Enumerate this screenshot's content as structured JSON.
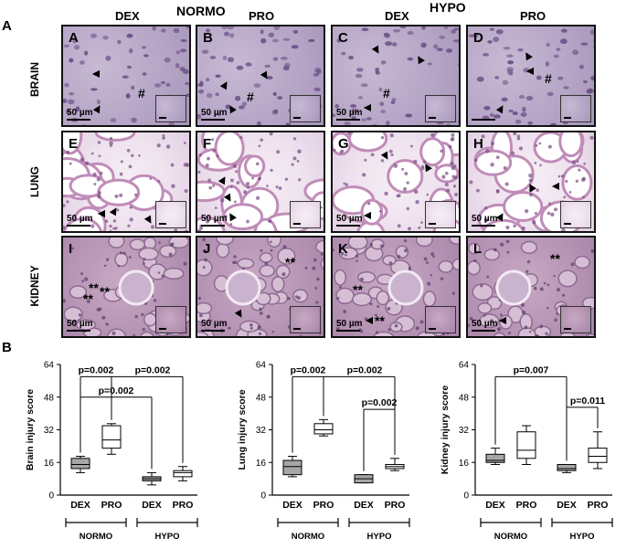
{
  "figure": {
    "label_a": "A",
    "label_b": "B",
    "headers": {
      "normo": "NORMO",
      "hypo": "HYPO",
      "dex": "DEX",
      "pro": "PRO"
    },
    "rows": [
      "BRAIN",
      "LUNG",
      "KIDNEY"
    ],
    "panels": [
      {
        "letter": "A",
        "scale": "50 µm",
        "marks": [
          "▲",
          "▲",
          "#"
        ]
      },
      {
        "letter": "B",
        "scale": "50 µm",
        "marks": [
          "▲",
          "▲",
          "▲",
          "#"
        ]
      },
      {
        "letter": "C",
        "scale": "50 µm",
        "marks": [
          "▲",
          "▲",
          "▲",
          "#"
        ]
      },
      {
        "letter": "D",
        "scale": "",
        "marks": [
          "▲",
          "▲",
          "▲",
          "#"
        ]
      },
      {
        "letter": "E",
        "scale": "50 µm",
        "marks": [
          "▲",
          "▲",
          "▲"
        ]
      },
      {
        "letter": "F",
        "scale": "50 µm",
        "marks": [
          "▲",
          "▲",
          "▲"
        ]
      },
      {
        "letter": "G",
        "scale": "50 µm",
        "marks": [
          "▲",
          "▲",
          "▲"
        ]
      },
      {
        "letter": "H",
        "scale": "50 µm",
        "marks": [
          "▲",
          "▲",
          "▲"
        ]
      },
      {
        "letter": "I",
        "scale": "50 µm",
        "marks": [
          "**",
          "**",
          "**"
        ]
      },
      {
        "letter": "J",
        "scale": "50 µm",
        "marks": [
          "**",
          "▲"
        ]
      },
      {
        "letter": "K",
        "scale": "50 µm",
        "marks": [
          "**",
          "**",
          "▲"
        ]
      },
      {
        "letter": "L",
        "scale": "50 µm",
        "marks": [
          "**",
          "▲"
        ]
      }
    ],
    "colors": {
      "dex_box": "#a6a6a6",
      "pro_box": "#ffffff",
      "brain_tissue": "#b5a5c6",
      "lung_tissue": "#eee2ee",
      "kidney_tissue": "#b795b5"
    }
  },
  "chart_data": [
    {
      "type": "box",
      "ylabel": "Brain injury score",
      "yticks": [
        0,
        16,
        32,
        48,
        64
      ],
      "ylim": [
        0,
        64
      ],
      "categories": [
        "DEX",
        "PRO",
        "DEX",
        "PRO"
      ],
      "groups": [
        "NORMO",
        "HYPO"
      ],
      "boxes": [
        {
          "min": 11,
          "q1": 13,
          "median": 15,
          "q3": 18,
          "max": 19,
          "fill": "#a6a6a6"
        },
        {
          "min": 20,
          "q1": 23,
          "median": 27,
          "q3": 34,
          "max": 35,
          "fill": "#ffffff"
        },
        {
          "min": 5,
          "q1": 7,
          "median": 8,
          "q3": 9,
          "max": 11,
          "fill": "#a6a6a6"
        },
        {
          "min": 7,
          "q1": 9,
          "median": 11,
          "q3": 12,
          "max": 14,
          "fill": "#ffffff"
        }
      ],
      "comparisons": [
        {
          "label": "p=0.002",
          "from": 0,
          "to": 1
        },
        {
          "label": "p=0.002",
          "from": 1,
          "to": 3
        },
        {
          "label": "p=0.002",
          "from": 0,
          "to": 2
        }
      ]
    },
    {
      "type": "box",
      "ylabel": "Lung injury score",
      "yticks": [
        0,
        16,
        32,
        48,
        64
      ],
      "ylim": [
        0,
        64
      ],
      "categories": [
        "DEX",
        "PRO",
        "DEX",
        "PRO"
      ],
      "groups": [
        "NORMO",
        "HYPO"
      ],
      "boxes": [
        {
          "min": 9,
          "q1": 10,
          "median": 14,
          "q3": 17,
          "max": 19,
          "fill": "#a6a6a6"
        },
        {
          "min": 29,
          "q1": 30,
          "median": 32,
          "q3": 35,
          "max": 37,
          "fill": "#ffffff"
        },
        {
          "min": 6,
          "q1": 6,
          "median": 8,
          "q3": 10,
          "max": 10,
          "fill": "#a6a6a6"
        },
        {
          "min": 12,
          "q1": 13,
          "median": 14,
          "q3": 15,
          "max": 18,
          "fill": "#ffffff"
        }
      ],
      "comparisons": [
        {
          "label": "p=0.002",
          "from": 0,
          "to": 1
        },
        {
          "label": "p=0.002",
          "from": 1,
          "to": 3
        },
        {
          "label": "p=0.002",
          "from": 2,
          "to": 3
        }
      ]
    },
    {
      "type": "box",
      "ylabel": "Kidney injury score",
      "yticks": [
        0,
        16,
        32,
        48,
        64
      ],
      "ylim": [
        0,
        64
      ],
      "categories": [
        "DEX",
        "PRO",
        "DEX",
        "PRO"
      ],
      "groups": [
        "NORMO",
        "HYPO"
      ],
      "boxes": [
        {
          "min": 15,
          "q1": 16,
          "median": 17,
          "q3": 20,
          "max": 23,
          "fill": "#a6a6a6"
        },
        {
          "min": 15,
          "q1": 18,
          "median": 22,
          "q3": 31,
          "max": 34,
          "fill": "#ffffff"
        },
        {
          "min": 11,
          "q1": 12,
          "median": 13,
          "q3": 15,
          "max": 15,
          "fill": "#a6a6a6"
        },
        {
          "min": 13,
          "q1": 16,
          "median": 19,
          "q3": 23,
          "max": 31,
          "fill": "#ffffff"
        }
      ],
      "comparisons": [
        {
          "label": "p=0.007",
          "from": 0,
          "to": 2
        },
        {
          "label": "p=0.011",
          "from": 2,
          "to": 3
        }
      ]
    }
  ]
}
